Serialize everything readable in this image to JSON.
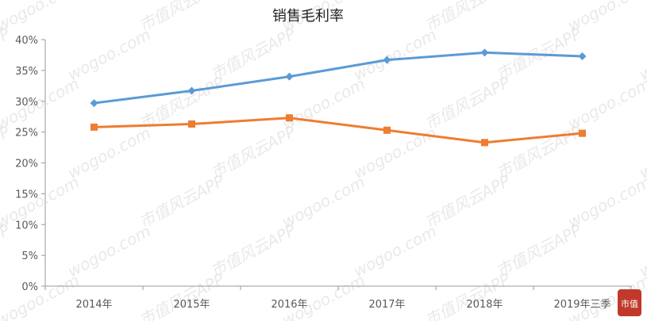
{
  "chart_data": {
    "type": "line",
    "title": "销售毛利率",
    "categories": [
      "2014年",
      "2015年",
      "2016年",
      "2017年",
      "2018年",
      "2019年三季"
    ],
    "ylim": [
      0,
      40
    ],
    "yticks": [
      "0%",
      "5%",
      "10%",
      "15%",
      "20%",
      "25%",
      "30%",
      "35%",
      "40%"
    ],
    "grid": false,
    "series": [
      {
        "color": "#5b9bd5",
        "marker": "diamond",
        "values": [
          29.7,
          31.7,
          34.0,
          36.7,
          37.9,
          37.3
        ]
      },
      {
        "color": "#ed7d31",
        "marker": "square",
        "values": [
          25.8,
          26.3,
          27.3,
          25.3,
          23.3,
          24.8
        ]
      }
    ]
  },
  "watermark": {
    "text_cn": "市值风云APP",
    "text_url": "wogoo.com",
    "color": "#d0d0d0"
  },
  "logo": {
    "text": "市值",
    "color": "#c0392b"
  }
}
